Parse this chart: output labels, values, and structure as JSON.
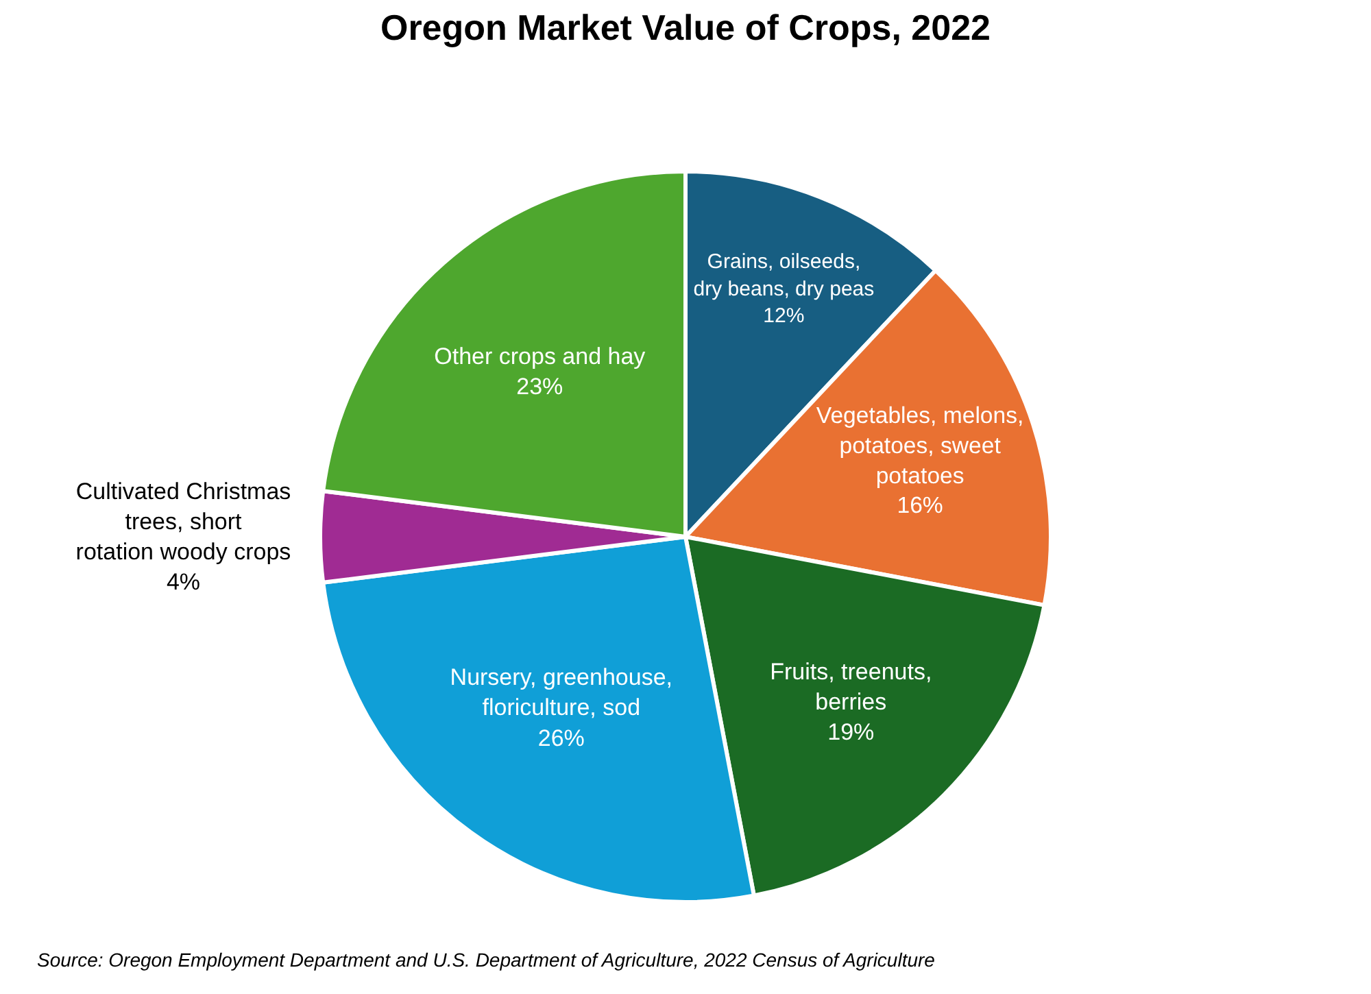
{
  "chart_data": {
    "type": "pie",
    "title": "Oregon Market Value of Crops, 2022",
    "categories": [
      "Grains, oilseeds, dry beans, dry peas",
      "Vegetables, melons, potatoes, sweet potatoes",
      "Fruits, treenuts, berries",
      "Nursery, greenhouse, floriculture, sod",
      "Cultivated Christmas trees, short rotation woody crops",
      "Other crops and hay"
    ],
    "values": [
      12,
      16,
      19,
      26,
      4,
      23
    ],
    "value_labels": [
      "12%",
      "16%",
      "19%",
      "26%",
      "4%",
      "23%"
    ],
    "colors": [
      "#175e82",
      "#e97132",
      "#1b6b24",
      "#109fd7",
      "#a02b93",
      "#4ea72e"
    ],
    "legend": false,
    "annotations": [
      "Source: Oregon Employment Department and U.S. Department of Agriculture, 2022 Census of Agriculture"
    ]
  }
}
